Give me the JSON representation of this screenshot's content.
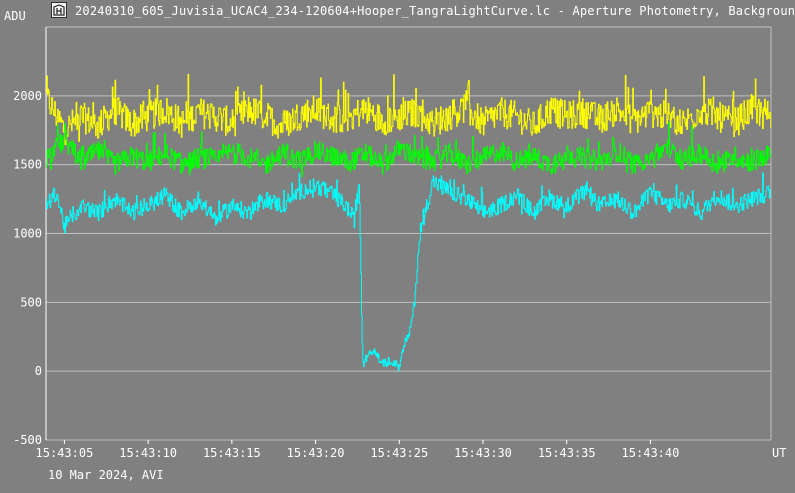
{
  "window": {
    "title": "20240310_605_Juvisia_UCAC4_234-120604+Hooper_TangraLightCurve.lc - Aperture Photometry, Backgroun",
    "logo_icon": "tangra-app-icon"
  },
  "footer": {
    "date_label": "10 Mar 2024, AVI"
  },
  "colors": {
    "background": "#808080",
    "grid": "#c0c0c0",
    "axis": "#ffffff",
    "text": "#ffffff",
    "yellow_series": "#ffff00",
    "green_series": "#00ff00",
    "cyan_series": "#00ffff"
  },
  "chart_data": {
    "type": "line",
    "ylabel": "ADU",
    "xlabel": "UT",
    "ylim": [
      -500,
      2500
    ],
    "xlim_seconds": [
      3.9,
      47.2
    ],
    "y_ticks": [
      2000,
      1500,
      1000,
      500,
      0,
      -500
    ],
    "x_ticks": [
      "15:43:05",
      "15:43:10",
      "15:43:15",
      "15:43:20",
      "15:43:25",
      "15:43:30",
      "15:43:35",
      "15:43:40"
    ],
    "x_tick_values_seconds": [
      5,
      10,
      15,
      20,
      25,
      30,
      35,
      40
    ],
    "grid": true,
    "legend": "none",
    "series": [
      {
        "color": "#ffff00",
        "profile": {
          "x": [
            3.9,
            5,
            6,
            7,
            8,
            9,
            10,
            11,
            12,
            13,
            14,
            15,
            16,
            17,
            18,
            19,
            20,
            21,
            22,
            23,
            24,
            25,
            26,
            27,
            28,
            29,
            30,
            31,
            32,
            33,
            34,
            35,
            36,
            37,
            38,
            39,
            40,
            41,
            42,
            43,
            44,
            45,
            46,
            47.2
          ],
          "y": [
            1990,
            1750,
            1850,
            1780,
            1900,
            1800,
            1850,
            1900,
            1800,
            1880,
            1850,
            1800,
            1900,
            1850,
            1780,
            1860,
            1900,
            1830,
            1850,
            1900,
            1820,
            1850,
            1880,
            1800,
            1860,
            1920,
            1800,
            1880,
            1850,
            1780,
            1900,
            1850,
            1880,
            1830,
            1900,
            1820,
            1880,
            1850,
            1800,
            1900,
            1850,
            1800,
            1900,
            1870
          ]
        }
      },
      {
        "color": "#00ff00",
        "profile": {
          "x": [
            3.9,
            5,
            6,
            7,
            8,
            9,
            10,
            11,
            12,
            13,
            14,
            15,
            16,
            17,
            18,
            19,
            20,
            21,
            22,
            23,
            24,
            25,
            26,
            27,
            28,
            29,
            30,
            31,
            32,
            33,
            34,
            35,
            36,
            37,
            38,
            39,
            40,
            41,
            42,
            43,
            44,
            45,
            46,
            47.2
          ],
          "y": [
            1550,
            1680,
            1520,
            1600,
            1500,
            1560,
            1520,
            1580,
            1500,
            1550,
            1530,
            1600,
            1550,
            1500,
            1580,
            1520,
            1600,
            1560,
            1520,
            1580,
            1500,
            1620,
            1550,
            1520,
            1580,
            1500,
            1550,
            1600,
            1520,
            1560,
            1500,
            1580,
            1550,
            1520,
            1600,
            1500,
            1560,
            1620,
            1530,
            1580,
            1500,
            1560,
            1520,
            1580
          ]
        }
      },
      {
        "color": "#00ffff",
        "profile": {
          "x": [
            3.9,
            4.5,
            5,
            6,
            7,
            8,
            9,
            10,
            11,
            12,
            13,
            14,
            15,
            16,
            17,
            18,
            19,
            20,
            21,
            21.8,
            22.3,
            22.6,
            22.8,
            23.0,
            23.5,
            24.0,
            24.5,
            25.0,
            25.3,
            25.6,
            25.9,
            26.2,
            27,
            28,
            29,
            30,
            31,
            32,
            33,
            34,
            35,
            36,
            37,
            38,
            39,
            40,
            41,
            42,
            43,
            44,
            45,
            46,
            47.2
          ],
          "y": [
            1200,
            1300,
            1050,
            1200,
            1150,
            1250,
            1150,
            1200,
            1280,
            1150,
            1250,
            1100,
            1200,
            1150,
            1250,
            1200,
            1300,
            1350,
            1280,
            1200,
            1100,
            1350,
            40,
            100,
            150,
            50,
            80,
            30,
            200,
            280,
            500,
            1000,
            1380,
            1300,
            1250,
            1150,
            1200,
            1280,
            1150,
            1250,
            1200,
            1300,
            1200,
            1250,
            1150,
            1300,
            1200,
            1250,
            1150,
            1280,
            1200,
            1250,
            1300
          ]
        }
      }
    ]
  }
}
